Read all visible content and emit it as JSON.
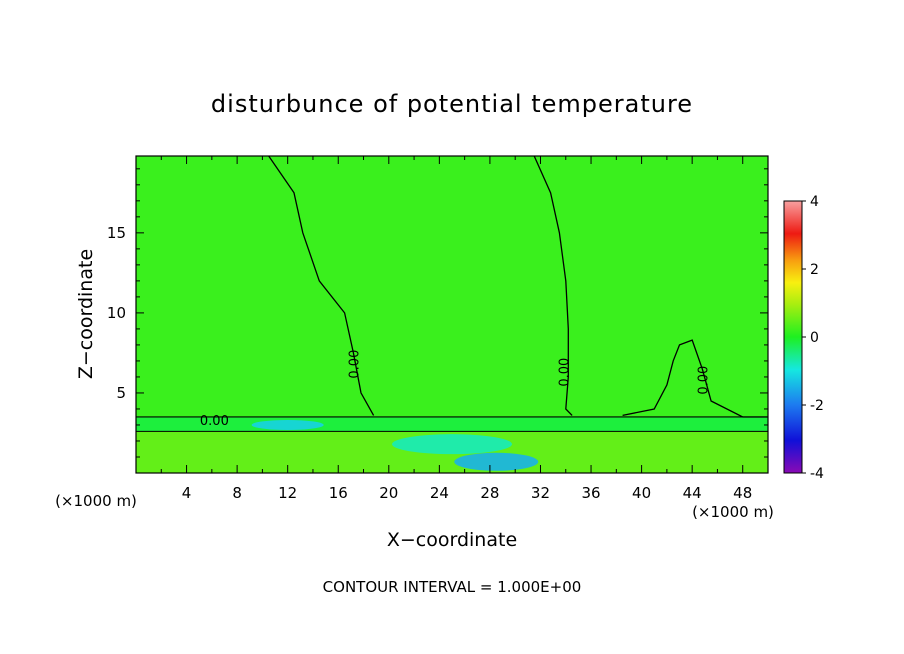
{
  "chart_data": {
    "type": "heatmap",
    "title": "disturbunce of potential temperature",
    "xlabel": "X−coordinate",
    "ylabel": "Z−coordinate",
    "x_unit_left": "(×1000 m)",
    "x_unit_right": "(×1000 m)",
    "footer": "CONTOUR INTERVAL = 1.000E+00",
    "xlim": [
      0,
      50
    ],
    "ylim": [
      0,
      19.8
    ],
    "x_ticks": [
      4,
      8,
      12,
      16,
      20,
      24,
      28,
      32,
      36,
      40,
      44,
      48
    ],
    "y_ticks": [
      5,
      10,
      15
    ],
    "colorbar": {
      "min": -4,
      "max": 4,
      "ticks": [
        4,
        2,
        0,
        -2,
        -4
      ]
    },
    "contour_labels": [
      "0.00",
      "0.00",
      "0.00",
      "0.00"
    ],
    "field": {
      "background_value": 0.2,
      "boundary_layer_top": 2.6,
      "inversion_top": 3.5,
      "cold_pool": [
        {
          "x": 12.0,
          "z": 3.0,
          "value": -1.2
        },
        {
          "x": 28.5,
          "z": 0.7,
          "value": -1.5
        },
        {
          "x": 25.0,
          "z": 1.8,
          "value": -0.8
        }
      ],
      "contour_zero_lines": [
        [
          [
            10.5,
            19.8
          ],
          [
            12.5,
            17.5
          ],
          [
            13.2,
            15.0
          ],
          [
            14.5,
            12.0
          ],
          [
            16.5,
            10.0
          ],
          [
            17.2,
            7.5
          ],
          [
            17.8,
            5.0
          ],
          [
            18.8,
            3.6
          ]
        ],
        [
          [
            31.5,
            19.8
          ],
          [
            32.8,
            17.5
          ],
          [
            33.5,
            15.0
          ],
          [
            34.0,
            12.0
          ],
          [
            34.2,
            9.0
          ],
          [
            34.2,
            6.0
          ],
          [
            34.0,
            4.0
          ],
          [
            34.5,
            3.6
          ]
        ],
        [
          [
            38.5,
            3.6
          ],
          [
            41.0,
            4.0
          ],
          [
            42.0,
            5.5
          ],
          [
            42.5,
            7.0
          ],
          [
            43.0,
            8.0
          ],
          [
            44.0,
            8.3
          ],
          [
            44.8,
            6.5
          ],
          [
            45.5,
            4.5
          ],
          [
            48.0,
            3.5
          ],
          [
            50.0,
            3.5
          ]
        ]
      ]
    }
  }
}
